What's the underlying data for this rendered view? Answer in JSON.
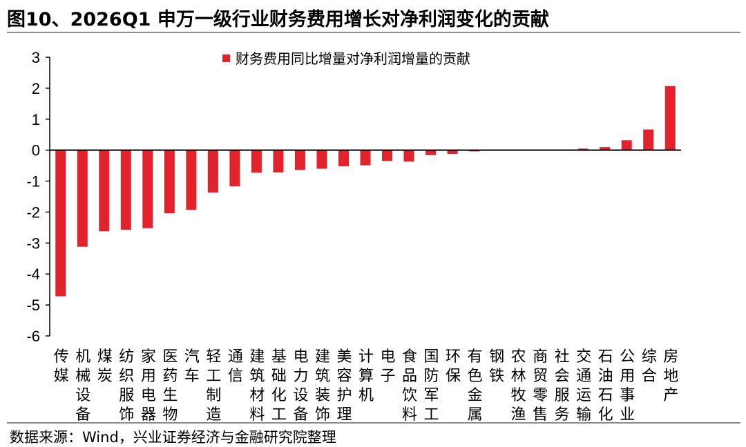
{
  "figure": {
    "title": "图10、2026Q1 申万一级行业财务费用增长对净利润变化的贡献",
    "source": "数据来源：Wind，兴业证券经济与金融研究院整理"
  },
  "chart_data": {
    "type": "bar",
    "title": "",
    "xlabel": "",
    "ylabel": "",
    "ylim": [
      -6,
      3
    ],
    "yticks": [
      3,
      2,
      1,
      0,
      -1,
      -2,
      -3,
      -4,
      -5,
      -6
    ],
    "ytick_labels": [
      "3",
      "2",
      "1",
      "0",
      "-1",
      "-2",
      "-3",
      "-4",
      "-5",
      "-6"
    ],
    "grid": false,
    "legend_position": "top",
    "bar_color": "#e3232c",
    "categories": [
      "传媒",
      "机械设备",
      "煤炭",
      "纺织服饰",
      "家用电器",
      "医药生物",
      "汽车",
      "轻工制造",
      "通信",
      "建筑材料",
      "基础化工",
      "电力设备",
      "建筑装饰",
      "美容护理",
      "计算机",
      "电子",
      "食品饮料",
      "国防军工",
      "环保",
      "有色金属",
      "钢铁",
      "农林牧渔",
      "商贸零售",
      "社会服务",
      "交通运输",
      "石油石化",
      "公用事业",
      "综合",
      "房地产"
    ],
    "series": [
      {
        "name": "财务费用同比增量对净利润增量的贡献",
        "values": [
          -4.72,
          -3.12,
          -2.62,
          -2.57,
          -2.52,
          -2.04,
          -1.93,
          -1.37,
          -1.17,
          -0.73,
          -0.72,
          -0.64,
          -0.6,
          -0.52,
          -0.49,
          -0.35,
          -0.37,
          -0.16,
          -0.12,
          -0.04,
          -0.01,
          -0.01,
          -0.01,
          0.01,
          0.05,
          0.1,
          0.32,
          0.67,
          2.07
        ]
      }
    ]
  }
}
